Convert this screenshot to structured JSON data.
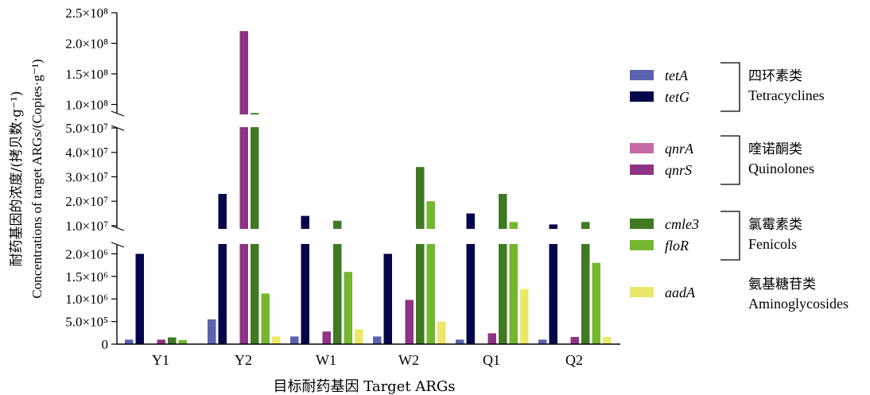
{
  "chart_data": {
    "type": "bar",
    "xlabel": "目标耐药基因 Target ARGs",
    "ylabel_cn": "耐药基因的浓度/(拷贝数·g⁻¹)",
    "ylabel_en": "Concentrations of target ARGs/(Copies·g⁻¹)",
    "axis_break": true,
    "categories": [
      "Y1",
      "Y2",
      "W1",
      "W2",
      "Q1",
      "Q2"
    ],
    "series": [
      {
        "name": "tetA",
        "color": "#5b62b0",
        "values": [
          100000,
          550000,
          170000,
          170000,
          100000,
          100000
        ]
      },
      {
        "name": "tetG",
        "color": "#06064a",
        "values": [
          2000000,
          23000000,
          14000000,
          2000000,
          15000000,
          10500000
        ]
      },
      {
        "name": "qnrA",
        "color": "#c36aa5",
        "values": [
          0,
          0,
          0,
          0,
          0,
          0
        ]
      },
      {
        "name": "qnrS",
        "color": "#8e3384",
        "values": [
          100000,
          220000000,
          280000,
          980000,
          240000,
          160000
        ]
      },
      {
        "name": "cmle3",
        "color": "#3f7a23",
        "values": [
          150000,
          86000000,
          12000000,
          34000000,
          23000000,
          11500000
        ]
      },
      {
        "name": "floR",
        "color": "#74b72e",
        "values": [
          90000,
          1120000,
          1600000,
          20000000,
          11500000,
          1800000
        ]
      },
      {
        "name": "aadA",
        "color": "#ebe76a",
        "values": [
          0,
          170000,
          330000,
          500000,
          1220000,
          160000
        ]
      }
    ],
    "y_segments": [
      {
        "range": [
          0,
          2200000
        ],
        "ticks": [
          {
            "value": 0,
            "label": "0"
          },
          {
            "value": 500000,
            "label": "5.0×10⁵"
          },
          {
            "value": 1000000,
            "label": "1.0×10⁶"
          },
          {
            "value": 1500000,
            "label": "1.5×10⁶"
          },
          {
            "value": 2000000,
            "label": "2.0×10⁶"
          }
        ]
      },
      {
        "range": [
          9000000,
          50000000
        ],
        "ticks": [
          {
            "value": 10000000,
            "label": "1.0×10⁷"
          },
          {
            "value": 20000000,
            "label": "2.0×10⁷"
          },
          {
            "value": 30000000,
            "label": "3.0×10⁷"
          },
          {
            "value": 40000000,
            "label": "4.0×10⁷"
          },
          {
            "value": 50000000,
            "label": "5.0×10⁷"
          }
        ]
      },
      {
        "range": [
          85000000,
          250000000
        ],
        "ticks": [
          {
            "value": 100000000,
            "label": "1.0×10⁸"
          },
          {
            "value": 150000000,
            "label": "1.5×10⁸"
          },
          {
            "value": 200000000,
            "label": "2.0×10⁸"
          },
          {
            "value": 250000000,
            "label": "2.5×10⁸"
          }
        ]
      }
    ],
    "legend_groups": [
      {
        "items": [
          "tetA",
          "tetG"
        ],
        "cn": "四环素类",
        "en": "Tetracyclines",
        "bracket": true
      },
      {
        "items": [
          "qnrA",
          "qnrS"
        ],
        "cn": "喹诺酮类",
        "en": "Quinolones",
        "bracket": true
      },
      {
        "items": [
          "cmle3",
          "floR"
        ],
        "cn": "氯霉素类",
        "en": "Fenicols",
        "bracket": true
      },
      {
        "items": [
          "aadA"
        ],
        "cn": "氨基糖苷类",
        "en": "Aminoglycosides",
        "bracket": false
      }
    ],
    "legend_position": "right"
  }
}
